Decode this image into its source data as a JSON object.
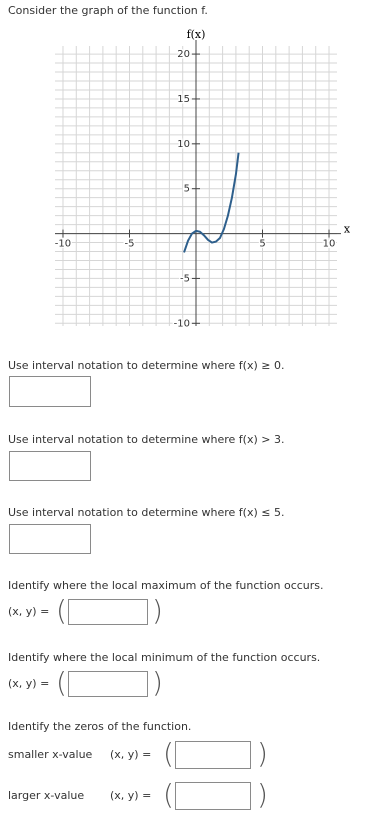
{
  "intro": "Consider the graph of the function f.",
  "chart_data": {
    "type": "line",
    "y_label": "f(x)",
    "x_label": "x",
    "x": [
      -0.9,
      -0.6,
      -0.3,
      0,
      0.3,
      0.6,
      0.9,
      1.2,
      1.5,
      1.8,
      2.1,
      2.4,
      2.7,
      3.0,
      3.2
    ],
    "values": [
      -2.1,
      -0.8,
      0.0,
      0.3,
      0.2,
      -0.2,
      -0.7,
      -1.0,
      -0.9,
      -0.5,
      0.5,
      2.0,
      4.0,
      6.6,
      9.0
    ],
    "color": "#2e5f8c",
    "xlim": [
      -10.6,
      10.6
    ],
    "ylim": [
      -10.3,
      20.9
    ],
    "xticks": [
      -10,
      -5,
      5,
      10
    ],
    "yticks": [
      -10,
      -5,
      5,
      10,
      15,
      20
    ],
    "grid": true
  },
  "questions": [
    {
      "text": "Use interval notation to determine where f(x) ≥ 0."
    },
    {
      "text": "Use interval notation to determine where f(x) > 3."
    },
    {
      "text": "Use interval notation to determine where f(x) ≤ 5."
    },
    {
      "text": "Identify where the local maximum of the function occurs.",
      "prefix": "(x, y) ="
    },
    {
      "text": "Identify where the local minimum of the function occurs.",
      "prefix": "(x, y) ="
    },
    {
      "text": "Identify the zeros of the function.",
      "rows": [
        {
          "label": "smaller x-value",
          "prefix": "(x, y) ="
        },
        {
          "label": "larger x-value",
          "prefix": "(x, y) ="
        }
      ]
    }
  ]
}
